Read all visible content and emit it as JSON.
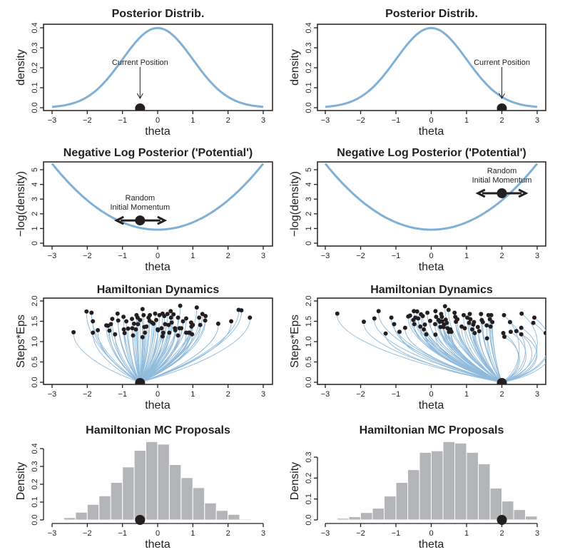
{
  "colors": {
    "curve": "#7fb0d5",
    "path": "#8fbadb",
    "point": "#231f20",
    "bar": "#b4b5b8",
    "bar_edge": "#ffffff",
    "axis": "#231f20"
  },
  "chart_data": [
    {
      "id": "posterior-left",
      "type": "line",
      "title": "Posterior Distrib.",
      "xlabel": "theta",
      "ylabel": "density",
      "xlim": [
        -3,
        3
      ],
      "ylim": [
        0,
        0.4
      ],
      "xticks": [
        -3,
        -2,
        -1,
        0,
        1,
        2,
        3
      ],
      "xtick_labels": [
        "−3",
        "−2",
        "−1",
        "0",
        "1",
        "2",
        "3"
      ],
      "yticks": [
        0.0,
        0.1,
        0.2,
        0.3,
        0.4
      ],
      "ytick_labels": [
        "0.0",
        "0.1",
        "0.2",
        "0.3",
        "0.4"
      ],
      "curve": "standard normal density",
      "current_position": {
        "theta": -0.5,
        "y": 0
      },
      "annotation": {
        "text": "Current Position",
        "arrow_to_theta": -0.5
      }
    },
    {
      "id": "posterior-right",
      "type": "line",
      "title": "Posterior Distrib.",
      "xlabel": "theta",
      "ylabel": "density",
      "xlim": [
        -3,
        3
      ],
      "ylim": [
        0,
        0.4
      ],
      "xticks": [
        -3,
        -2,
        -1,
        0,
        1,
        2,
        3
      ],
      "xtick_labels": [
        "−3",
        "−2",
        "−1",
        "0",
        "1",
        "2",
        "3"
      ],
      "yticks": [
        0.0,
        0.1,
        0.2,
        0.3,
        0.4
      ],
      "ytick_labels": [
        "0.0",
        "0.1",
        "0.2",
        "0.3",
        "0.4"
      ],
      "curve": "standard normal density",
      "current_position": {
        "theta": 2.0,
        "y": 0
      },
      "annotation": {
        "text": "Current Position",
        "arrow_to_theta": 2.0
      }
    },
    {
      "id": "potential-left",
      "type": "line",
      "title": "Negative Log Posterior ('Potential')",
      "xlabel": "theta",
      "ylabel": "−log(density)",
      "xlim": [
        -3,
        3
      ],
      "ylim": [
        0,
        5.4
      ],
      "xticks": [
        -3,
        -2,
        -1,
        0,
        1,
        2,
        3
      ],
      "xtick_labels": [
        "−3",
        "−2",
        "−1",
        "0",
        "1",
        "2",
        "3"
      ],
      "yticks": [
        0,
        1,
        2,
        3,
        4,
        5
      ],
      "ytick_labels": [
        "0",
        "1",
        "2",
        "3",
        "4",
        "5"
      ],
      "curve": "negative log of standard normal density",
      "momentum_point": {
        "theta": -0.5,
        "y": 1.55
      },
      "momentum_arrow": {
        "from": -1.17,
        "to": 0.2
      },
      "annotation_lines": [
        "Random",
        "Initial Momentum"
      ]
    },
    {
      "id": "potential-right",
      "type": "line",
      "title": "Negative Log Posterior ('Potential')",
      "xlabel": "theta",
      "ylabel": "−log(density)",
      "xlim": [
        -3,
        3
      ],
      "ylim": [
        0,
        5.4
      ],
      "xticks": [
        -3,
        -2,
        -1,
        0,
        1,
        2,
        3
      ],
      "xtick_labels": [
        "−3",
        "−2",
        "−1",
        "0",
        "1",
        "2",
        "3"
      ],
      "yticks": [
        0,
        1,
        2,
        3,
        4,
        5
      ],
      "ytick_labels": [
        "0",
        "1",
        "2",
        "3",
        "4",
        "5"
      ],
      "curve": "negative log of standard normal density",
      "momentum_point": {
        "theta": 2.0,
        "y": 3.4
      },
      "momentum_arrow": {
        "from": 1.32,
        "to": 2.68
      },
      "annotation_lines": [
        "Random",
        "Initial Momentum"
      ]
    },
    {
      "id": "dynamics-left",
      "type": "scatter",
      "title": "Hamiltonian Dynamics",
      "xlabel": "theta",
      "ylabel": "Steps*Eps",
      "xlim": [
        -3.25,
        3.25
      ],
      "ylim": [
        0,
        2.0
      ],
      "xticks": [
        -3,
        -2,
        -1,
        0,
        1,
        2,
        3
      ],
      "xtick_labels": [
        "−3",
        "−2",
        "−1",
        "0",
        "1",
        "2",
        "3"
      ],
      "yticks": [
        0.0,
        0.5,
        1.0,
        1.5,
        2.0
      ],
      "ytick_labels": [
        "0.0",
        "0.5",
        "1.0",
        "1.5",
        "2.0"
      ],
      "start": {
        "theta": -0.5,
        "y": 0
      },
      "endpoints": [
        [
          -2.39,
          1.23
        ],
        [
          -2.02,
          1.74
        ],
        [
          -1.88,
          1.71
        ],
        [
          -1.84,
          1.5
        ],
        [
          -1.84,
          1.22
        ],
        [
          -1.7,
          1.28
        ],
        [
          -1.46,
          1.4
        ],
        [
          -1.41,
          1.39
        ],
        [
          -1.37,
          1.27
        ],
        [
          -1.33,
          1.43
        ],
        [
          -1.29,
          1.56
        ],
        [
          -1.21,
          1.18
        ],
        [
          -1.14,
          1.69
        ],
        [
          -1.12,
          1.52
        ],
        [
          -0.97,
          1.61
        ],
        [
          -0.96,
          1.3
        ],
        [
          -0.94,
          1.21
        ],
        [
          -0.89,
          1.5
        ],
        [
          -0.84,
          1.32
        ],
        [
          -0.73,
          1.56
        ],
        [
          -0.72,
          1.33
        ],
        [
          -0.7,
          1.15
        ],
        [
          -0.67,
          1.44
        ],
        [
          -0.62,
          1.3
        ],
        [
          -0.6,
          1.65
        ],
        [
          -0.57,
          1.59
        ],
        [
          -0.56,
          1.43
        ],
        [
          -0.5,
          1.53
        ],
        [
          -0.43,
          1.8
        ],
        [
          -0.43,
          1.11
        ],
        [
          -0.4,
          1.65
        ],
        [
          -0.38,
          1.36
        ],
        [
          -0.36,
          1.22
        ],
        [
          -0.32,
          1.37
        ],
        [
          -0.26,
          1.59
        ],
        [
          -0.23,
          1.51
        ],
        [
          -0.22,
          1.65
        ],
        [
          -0.16,
          1.47
        ],
        [
          -0.12,
          1.44
        ],
        [
          -0.07,
          1.69
        ],
        [
          -0.04,
          1.53
        ],
        [
          0.0,
          1.3
        ],
        [
          0.01,
          1.28
        ],
        [
          0.05,
          1.65
        ],
        [
          0.11,
          1.33
        ],
        [
          0.14,
          1.69
        ],
        [
          0.14,
          1.13
        ],
        [
          0.16,
          1.22
        ],
        [
          0.19,
          1.63
        ],
        [
          0.21,
          1.43
        ],
        [
          0.28,
          1.68
        ],
        [
          0.31,
          1.41
        ],
        [
          0.33,
          1.22
        ],
        [
          0.37,
          1.75
        ],
        [
          0.38,
          1.59
        ],
        [
          0.4,
          1.47
        ],
        [
          0.45,
          1.67
        ],
        [
          0.49,
          1.33
        ],
        [
          0.5,
          1.28
        ],
        [
          0.58,
          1.59
        ],
        [
          0.58,
          1.15
        ],
        [
          0.62,
          1.33
        ],
        [
          0.64,
          1.88
        ],
        [
          0.67,
          1.33
        ],
        [
          0.72,
          1.5
        ],
        [
          0.81,
          1.22
        ],
        [
          0.81,
          1.57
        ],
        [
          0.88,
          1.22
        ],
        [
          0.91,
          1.22
        ],
        [
          0.95,
          1.47
        ],
        [
          0.96,
          1.37
        ],
        [
          0.98,
          1.18
        ],
        [
          1.0,
          1.41
        ],
        [
          1.11,
          1.84
        ],
        [
          1.18,
          1.59
        ],
        [
          1.21,
          1.41
        ],
        [
          1.27,
          1.68
        ],
        [
          1.35,
          1.52
        ],
        [
          1.36,
          1.63
        ],
        [
          1.72,
          1.44
        ],
        [
          2.09,
          1.5
        ],
        [
          2.3,
          1.78
        ],
        [
          2.38,
          1.77
        ],
        [
          2.62,
          1.59
        ]
      ]
    },
    {
      "id": "dynamics-right",
      "type": "scatter",
      "title": "Hamiltonian Dynamics",
      "xlabel": "theta",
      "ylabel": "Steps*Eps",
      "xlim": [
        -3.25,
        3.25
      ],
      "ylim": [
        0,
        2.0
      ],
      "xticks": [
        -3,
        -2,
        -1,
        0,
        1,
        2,
        3
      ],
      "xtick_labels": [
        "−3",
        "−2",
        "−1",
        "0",
        "1",
        "2",
        "3"
      ],
      "yticks": [
        0.0,
        0.5,
        1.0,
        1.5,
        2.0
      ],
      "ytick_labels": [
        "0.0",
        "0.5",
        "1.0",
        "1.5",
        "2.0"
      ],
      "start": {
        "theta": 2.0,
        "y": 0
      },
      "endpoints": [
        [
          -2.66,
          1.69
        ],
        [
          -1.91,
          1.49
        ],
        [
          -1.61,
          1.57
        ],
        [
          -1.49,
          1.75
        ],
        [
          -1.29,
          1.2
        ],
        [
          -1.13,
          1.59
        ],
        [
          -1.05,
          1.43
        ],
        [
          -0.9,
          1.24
        ],
        [
          -0.74,
          1.34
        ],
        [
          -0.65,
          1.62
        ],
        [
          -0.6,
          1.64
        ],
        [
          -0.51,
          1.53
        ],
        [
          -0.49,
          1.75
        ],
        [
          -0.48,
          1.43
        ],
        [
          -0.45,
          1.59
        ],
        [
          -0.4,
          1.74
        ],
        [
          -0.37,
          1.57
        ],
        [
          -0.31,
          1.37
        ],
        [
          -0.29,
          1.67
        ],
        [
          -0.24,
          1.63
        ],
        [
          -0.21,
          1.3
        ],
        [
          -0.18,
          1.42
        ],
        [
          -0.14,
          1.18
        ],
        [
          -0.11,
          1.71
        ],
        [
          -0.03,
          1.51
        ],
        [
          0.11,
          1.43
        ],
        [
          0.12,
          1.75
        ],
        [
          0.12,
          1.17
        ],
        [
          0.14,
          1.61
        ],
        [
          0.21,
          1.53
        ],
        [
          0.24,
          1.49
        ],
        [
          0.26,
          1.36
        ],
        [
          0.28,
          1.68
        ],
        [
          0.3,
          1.61
        ],
        [
          0.31,
          1.5
        ],
        [
          0.35,
          1.36
        ],
        [
          0.36,
          1.42
        ],
        [
          0.39,
          1.87
        ],
        [
          0.41,
          1.54
        ],
        [
          0.44,
          1.46
        ],
        [
          0.46,
          1.33
        ],
        [
          0.49,
          1.78
        ],
        [
          0.5,
          1.24
        ],
        [
          0.54,
          1.3
        ],
        [
          0.57,
          1.24
        ],
        [
          0.66,
          1.71
        ],
        [
          0.68,
          1.61
        ],
        [
          0.7,
          1.49
        ],
        [
          0.74,
          1.55
        ],
        [
          0.86,
          1.37
        ],
        [
          0.92,
          1.65
        ],
        [
          0.95,
          1.33
        ],
        [
          1.02,
          1.59
        ],
        [
          1.07,
          1.46
        ],
        [
          1.09,
          1.68
        ],
        [
          1.11,
          1.55
        ],
        [
          1.16,
          1.3
        ],
        [
          1.19,
          1.42
        ],
        [
          1.21,
          1.48
        ],
        [
          1.23,
          1.21
        ],
        [
          1.32,
          1.36
        ],
        [
          1.36,
          1.26
        ],
        [
          1.41,
          1.68
        ],
        [
          1.43,
          1.53
        ],
        [
          1.46,
          1.48
        ],
        [
          1.58,
          1.08
        ],
        [
          1.57,
          1.4
        ],
        [
          1.62,
          1.65
        ],
        [
          1.66,
          1.55
        ],
        [
          1.68,
          1.37
        ],
        [
          1.7,
          1.65
        ],
        [
          1.73,
          1.48
        ],
        [
          2.04,
          1.21
        ],
        [
          2.06,
          1.65
        ],
        [
          2.07,
          1.12
        ],
        [
          2.23,
          1.48
        ],
        [
          2.25,
          1.24
        ],
        [
          2.41,
          1.26
        ],
        [
          2.55,
          1.34
        ],
        [
          2.55,
          1.18
        ],
        [
          2.56,
          1.69
        ],
        [
          2.89,
          1.46
        ],
        [
          2.92,
          1.59
        ],
        [
          3.24,
          1.21
        ]
      ]
    },
    {
      "id": "proposals-left",
      "type": "bar",
      "title": "Hamiltonian MC Proposals",
      "xlabel": "theta",
      "ylabel": "Density",
      "xlim": [
        -3,
        3
      ],
      "ylim": [
        0,
        0.44
      ],
      "xticks": [
        -3,
        -2,
        -1,
        0,
        1,
        2,
        3
      ],
      "xtick_labels": [
        "−3",
        "−2",
        "−1",
        "0",
        "1",
        "2",
        "3"
      ],
      "yticks": [
        0.0,
        0.1,
        0.2,
        0.3,
        0.4
      ],
      "ytick_labels": [
        "0.0",
        "0.1",
        "0.2",
        "0.3",
        "0.4"
      ],
      "bin_start": -2.6667,
      "bin_width": 0.3333,
      "values": [
        0.013,
        0.043,
        0.087,
        0.135,
        0.21,
        0.297,
        0.39,
        0.439,
        0.425,
        0.31,
        0.237,
        0.181,
        0.095,
        0.053,
        0.031,
        0.005
      ],
      "current_position": {
        "theta": -0.5
      }
    },
    {
      "id": "proposals-right",
      "type": "bar",
      "title": "Hamiltonian MC Proposals",
      "xlabel": "theta",
      "ylabel": "Density",
      "xlim": [
        -3,
        3
      ],
      "ylim": [
        0,
        0.374
      ],
      "xticks": [
        -3,
        -2,
        -1,
        0,
        1,
        2,
        3
      ],
      "xtick_labels": [
        "−3",
        "−2",
        "−1",
        "0",
        "1",
        "2",
        "3"
      ],
      "yticks": [
        0.0,
        0.1,
        0.2,
        0.3
      ],
      "ytick_labels": [
        "0.0",
        "0.1",
        "0.2",
        "0.3"
      ],
      "bin_start": -2.6667,
      "bin_width": 0.3333,
      "values": [
        0.008,
        0.015,
        0.035,
        0.056,
        0.114,
        0.179,
        0.24,
        0.323,
        0.33,
        0.374,
        0.367,
        0.323,
        0.268,
        0.152,
        0.09,
        0.049,
        0.018
      ],
      "current_position": {
        "theta": 2.0
      }
    }
  ]
}
